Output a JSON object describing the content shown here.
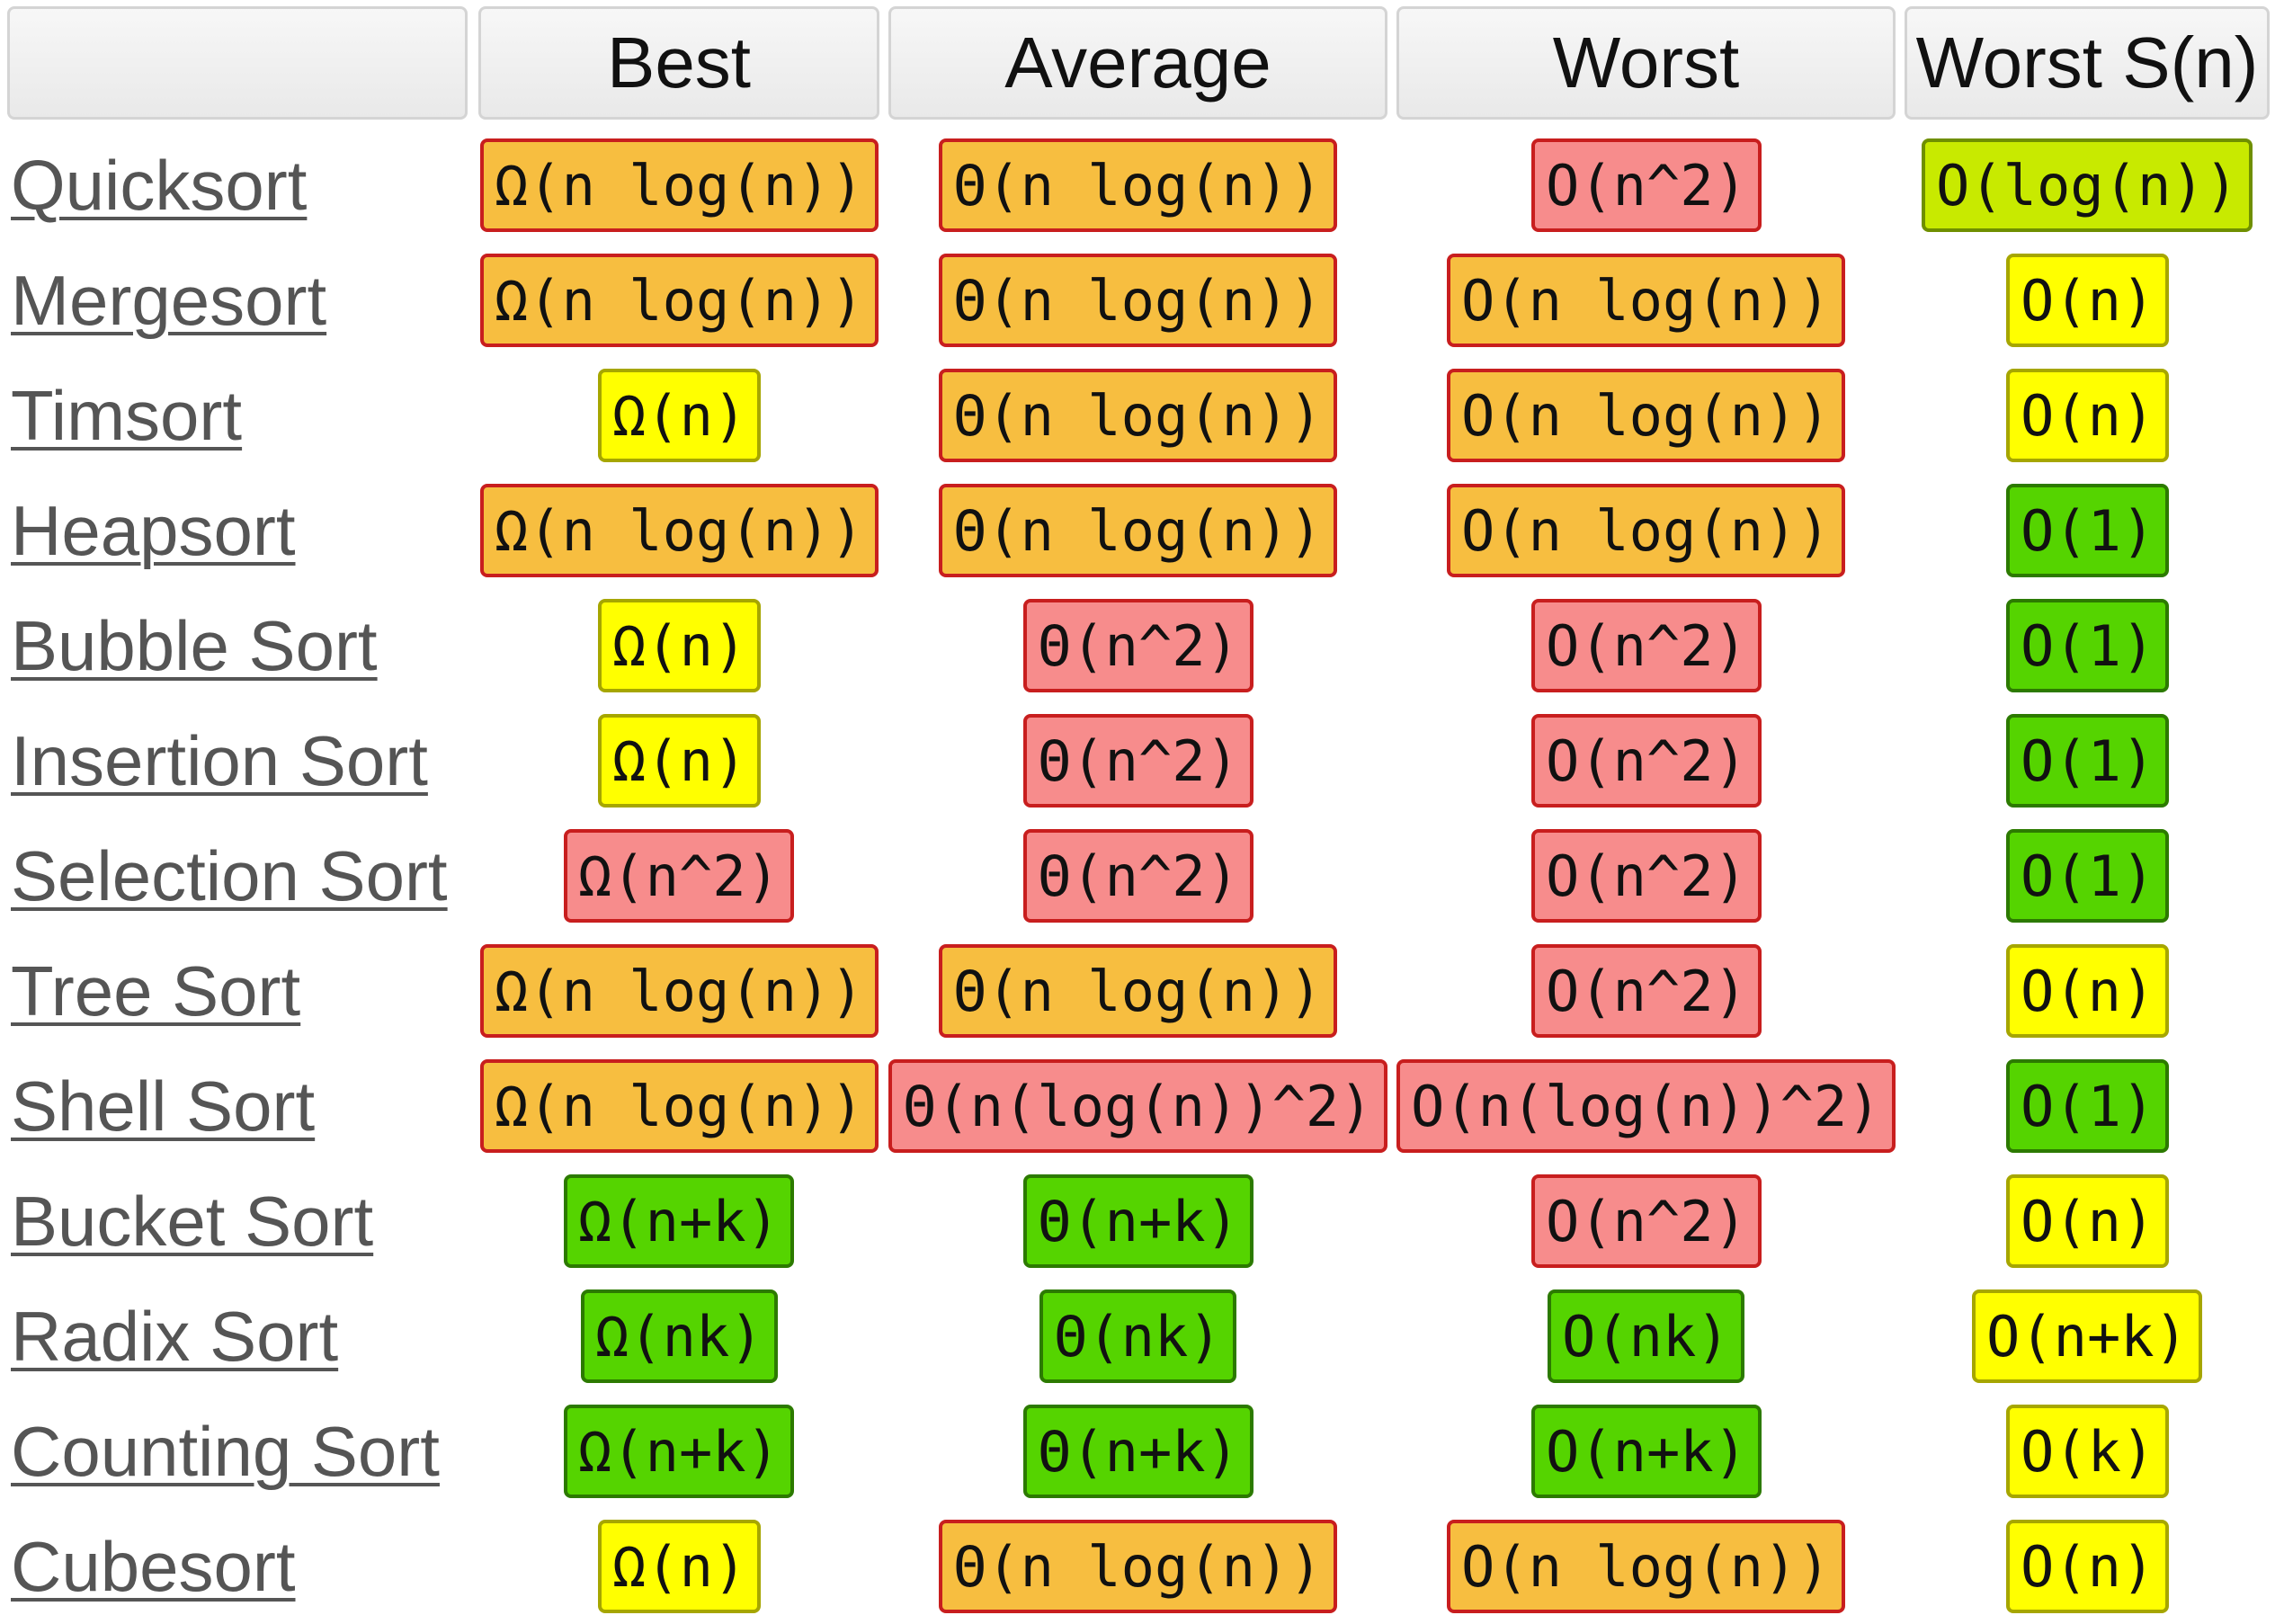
{
  "chart_data": {
    "type": "table",
    "columns": [
      "",
      "Best",
      "Average",
      "Worst",
      "Worst S(n)"
    ],
    "rows": [
      {
        "name": "Quicksort",
        "cells": [
          "Ω(n log(n))",
          "Θ(n log(n))",
          "O(n^2)",
          "O(log(n))"
        ]
      },
      {
        "name": "Mergesort",
        "cells": [
          "Ω(n log(n))",
          "Θ(n log(n))",
          "O(n log(n))",
          "O(n)"
        ]
      },
      {
        "name": "Timsort",
        "cells": [
          "Ω(n)",
          "Θ(n log(n))",
          "O(n log(n))",
          "O(n)"
        ]
      },
      {
        "name": "Heapsort",
        "cells": [
          "Ω(n log(n))",
          "Θ(n log(n))",
          "O(n log(n))",
          "O(1)"
        ]
      },
      {
        "name": "Bubble Sort",
        "cells": [
          "Ω(n)",
          "Θ(n^2)",
          "O(n^2)",
          "O(1)"
        ]
      },
      {
        "name": "Insertion Sort",
        "cells": [
          "Ω(n)",
          "Θ(n^2)",
          "O(n^2)",
          "O(1)"
        ]
      },
      {
        "name": "Selection Sort",
        "cells": [
          "Ω(n^2)",
          "Θ(n^2)",
          "O(n^2)",
          "O(1)"
        ]
      },
      {
        "name": "Tree Sort",
        "cells": [
          "Ω(n log(n))",
          "Θ(n log(n))",
          "O(n^2)",
          "O(n)"
        ]
      },
      {
        "name": "Shell Sort",
        "cells": [
          "Ω(n log(n))",
          "Θ(n(log(n))^2)",
          "O(n(log(n))^2)",
          "O(1)"
        ]
      },
      {
        "name": "Bucket Sort",
        "cells": [
          "Ω(n+k)",
          "Θ(n+k)",
          "O(n^2)",
          "O(n)"
        ]
      },
      {
        "name": "Radix Sort",
        "cells": [
          "Ω(nk)",
          "Θ(nk)",
          "O(nk)",
          "O(n+k)"
        ]
      },
      {
        "name": "Counting Sort",
        "cells": [
          "Ω(n+k)",
          "Θ(n+k)",
          "O(n+k)",
          "O(k)"
        ]
      },
      {
        "name": "Cubesort",
        "cells": [
          "Ω(n)",
          "Θ(n log(n))",
          "O(n log(n))",
          "O(n)"
        ]
      }
    ],
    "levels": [
      [
        "orange",
        "orange",
        "red",
        "yellowgreen"
      ],
      [
        "orange",
        "orange",
        "orange",
        "yellow"
      ],
      [
        "yellow",
        "orange",
        "orange",
        "yellow"
      ],
      [
        "orange",
        "orange",
        "orange",
        "green"
      ],
      [
        "yellow",
        "red",
        "red",
        "green"
      ],
      [
        "yellow",
        "red",
        "red",
        "green"
      ],
      [
        "red",
        "red",
        "red",
        "green"
      ],
      [
        "orange",
        "orange",
        "red",
        "yellow"
      ],
      [
        "orange",
        "red",
        "red",
        "green"
      ],
      [
        "green",
        "green",
        "red",
        "yellow"
      ],
      [
        "green",
        "green",
        "green",
        "yellow"
      ],
      [
        "green",
        "green",
        "green",
        "yellow"
      ],
      [
        "yellow",
        "orange",
        "orange",
        "yellow"
      ]
    ],
    "colors": {
      "green": {
        "fill": "#55d400",
        "border": "#2c7a00"
      },
      "yellowgreen": {
        "fill": "#c8ea00",
        "border": "#6f8f00"
      },
      "yellow": {
        "fill": "#ffff00",
        "border": "#a6a600"
      },
      "orange": {
        "fill": "#f7be40",
        "border": "#c81e1e"
      },
      "red": {
        "fill": "#f78c8c",
        "border": "#c81e1e"
      }
    }
  }
}
